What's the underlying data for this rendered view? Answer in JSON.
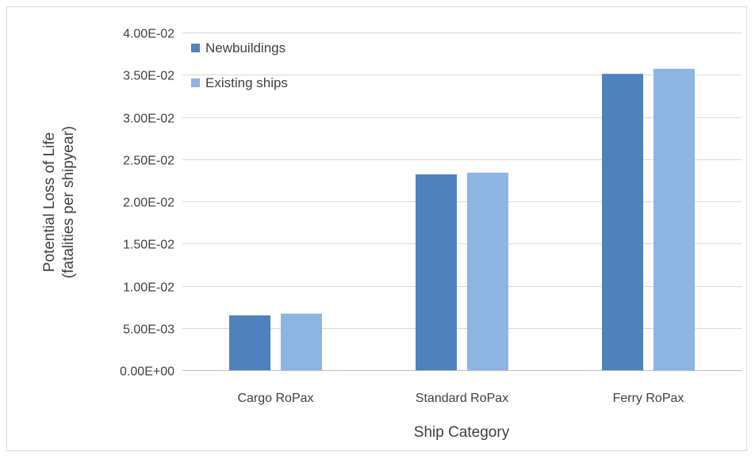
{
  "chart_data": {
    "type": "bar",
    "title": "",
    "xlabel": "Ship Category",
    "ylabel_line1": "Potential Loss of Life",
    "ylabel_line2": "(fatalities per shipyear)",
    "categories": [
      "Cargo RoPax",
      "Standard RoPax",
      "Ferry RoPax"
    ],
    "series": [
      {
        "name": "Newbuildings",
        "color": "#4f81bd",
        "values": [
          0.0065,
          0.0232,
          0.0351
        ]
      },
      {
        "name": "Existing ships",
        "color": "#8eb4e3",
        "values": [
          0.0067,
          0.0234,
          0.0357
        ]
      }
    ],
    "ylim": [
      0,
      0.04
    ],
    "y_ticks": [
      0,
      0.005,
      0.01,
      0.015,
      0.02,
      0.025,
      0.03,
      0.035,
      0.04
    ],
    "y_tick_labels": [
      "0.00E+00",
      "5.00E-03",
      "1.00E-02",
      "1.50E-02",
      "2.00E-02",
      "2.50E-02",
      "3.00E-02",
      "3.50E-02",
      "4.00E-02"
    ],
    "grid": true,
    "legend_position": "top-left"
  }
}
